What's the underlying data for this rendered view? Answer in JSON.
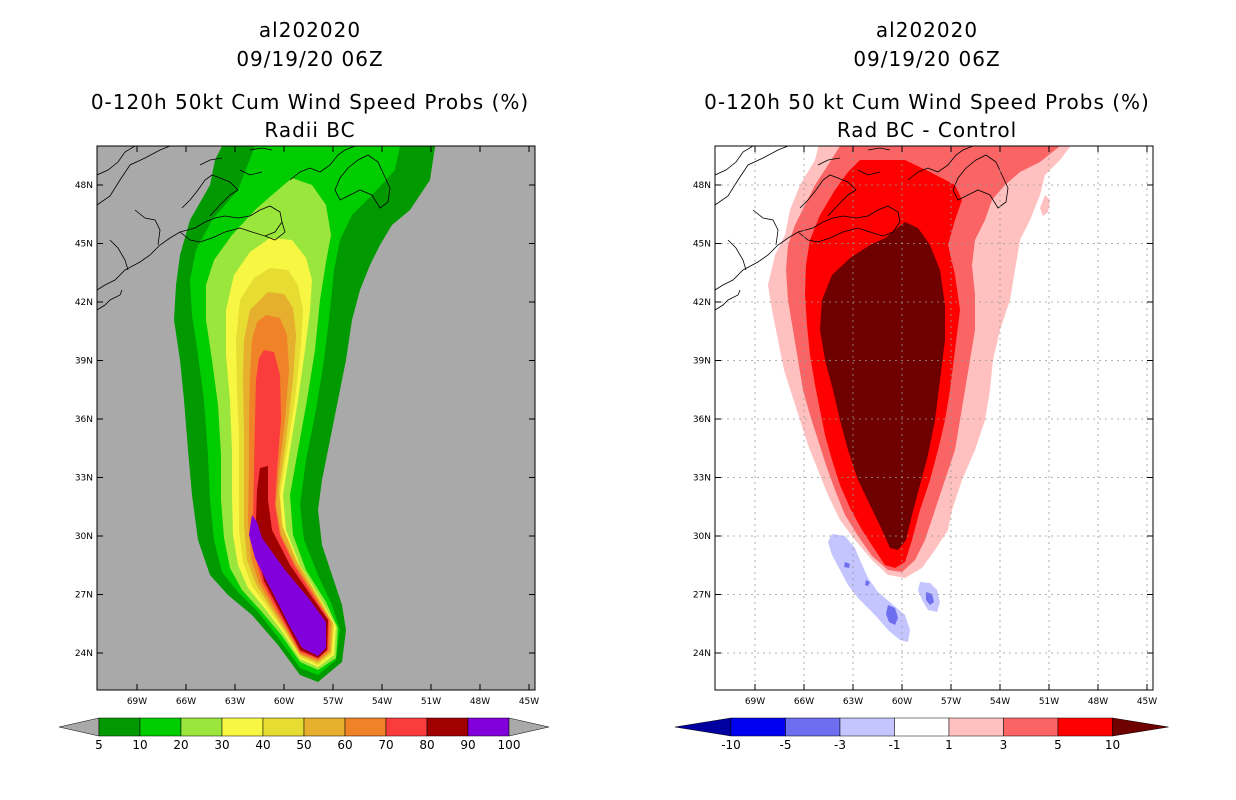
{
  "left_panel": {
    "storm_id": "al202020",
    "datetime": "09/19/20 06Z",
    "product": "0-120h 50kt Cum Wind Speed Probs (%)",
    "subtitle": "Radii BC",
    "lat_labels": [
      "48N",
      "45N",
      "42N",
      "39N",
      "36N",
      "33N",
      "30N",
      "27N",
      "24N"
    ],
    "lon_labels": [
      "69W",
      "66W",
      "63W",
      "60W",
      "57W",
      "54W",
      "51W",
      "48W",
      "45W"
    ],
    "colorbar": {
      "levels": [
        "5",
        "10",
        "20",
        "30",
        "40",
        "50",
        "60",
        "70",
        "80",
        "90",
        "100"
      ],
      "colors": [
        "#009a00",
        "#00cd00",
        "#9be63c",
        "#f7f743",
        "#e6dc32",
        "#e6af2d",
        "#f08228",
        "#fa3c3c",
        "#a00000",
        "#8200dc"
      ],
      "extend_color": "#a9a9a9"
    },
    "background_color": "#a9a9a9"
  },
  "right_panel": {
    "storm_id": "al202020",
    "datetime": "09/19/20 06Z",
    "product": "0-120h 50 kt Cum Wind Speed Probs (%)",
    "subtitle": "Rad BC - Control",
    "lat_labels": [
      "48N",
      "45N",
      "42N",
      "39N",
      "36N",
      "33N",
      "30N",
      "27N",
      "24N"
    ],
    "lon_labels": [
      "69W",
      "66W",
      "63W",
      "60W",
      "57W",
      "54W",
      "51W",
      "48W",
      "45W"
    ],
    "colorbar": {
      "levels": [
        "-10",
        "-5",
        "-3",
        "-1",
        "1",
        "3",
        "5",
        "10"
      ],
      "colors": [
        "#0000a0",
        "#0000f0",
        "#6e6ef0",
        "#c4c4ff",
        "#ffffff",
        "#ffc0c0",
        "#fa6464",
        "#ff0000",
        "#6e0000"
      ]
    }
  }
}
